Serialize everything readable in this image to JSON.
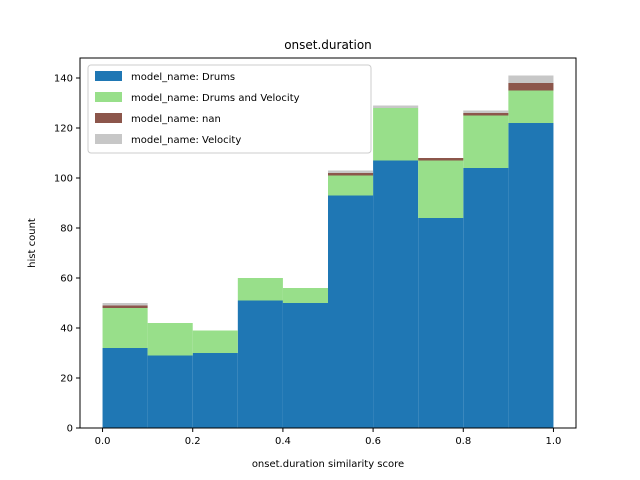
{
  "chart_data": {
    "type": "bar",
    "stacked": true,
    "title": "onset.duration",
    "xlabel": "onset.duration similarity score",
    "ylabel": "hist count",
    "bin_edges": [
      0.0,
      0.1,
      0.2,
      0.3,
      0.4,
      0.5,
      0.6,
      0.7,
      0.8,
      0.9,
      1.0
    ],
    "xlim": [
      -0.05,
      1.05
    ],
    "ylim": [
      0,
      148
    ],
    "xticks": [
      "0.0",
      "0.2",
      "0.4",
      "0.6",
      "0.8",
      "1.0"
    ],
    "yticks": [
      "0",
      "20",
      "40",
      "60",
      "80",
      "100",
      "120",
      "140"
    ],
    "xtick_values": [
      0.0,
      0.2,
      0.4,
      0.6,
      0.8,
      1.0
    ],
    "ytick_values": [
      0,
      20,
      40,
      60,
      80,
      100,
      120,
      140
    ],
    "grid": false,
    "legend_position": "top-left",
    "series": [
      {
        "name": "model_name: Drums",
        "color": "#1f77b4",
        "values": [
          32,
          29,
          30,
          51,
          50,
          93,
          107,
          84,
          104,
          122
        ]
      },
      {
        "name": "model_name: Drums and Velocity",
        "color": "#98df8a",
        "values": [
          16,
          13,
          9,
          9,
          6,
          8,
          21,
          23,
          21,
          13
        ]
      },
      {
        "name": "model_name: nan",
        "color": "#8c564b",
        "values": [
          1,
          0,
          0,
          0,
          0,
          1,
          0,
          1,
          1,
          3
        ]
      },
      {
        "name": "model_name: Velocity",
        "color": "#c7c7c7",
        "values": [
          1,
          0,
          0,
          0,
          0,
          1,
          1,
          0,
          1,
          3
        ]
      }
    ]
  }
}
